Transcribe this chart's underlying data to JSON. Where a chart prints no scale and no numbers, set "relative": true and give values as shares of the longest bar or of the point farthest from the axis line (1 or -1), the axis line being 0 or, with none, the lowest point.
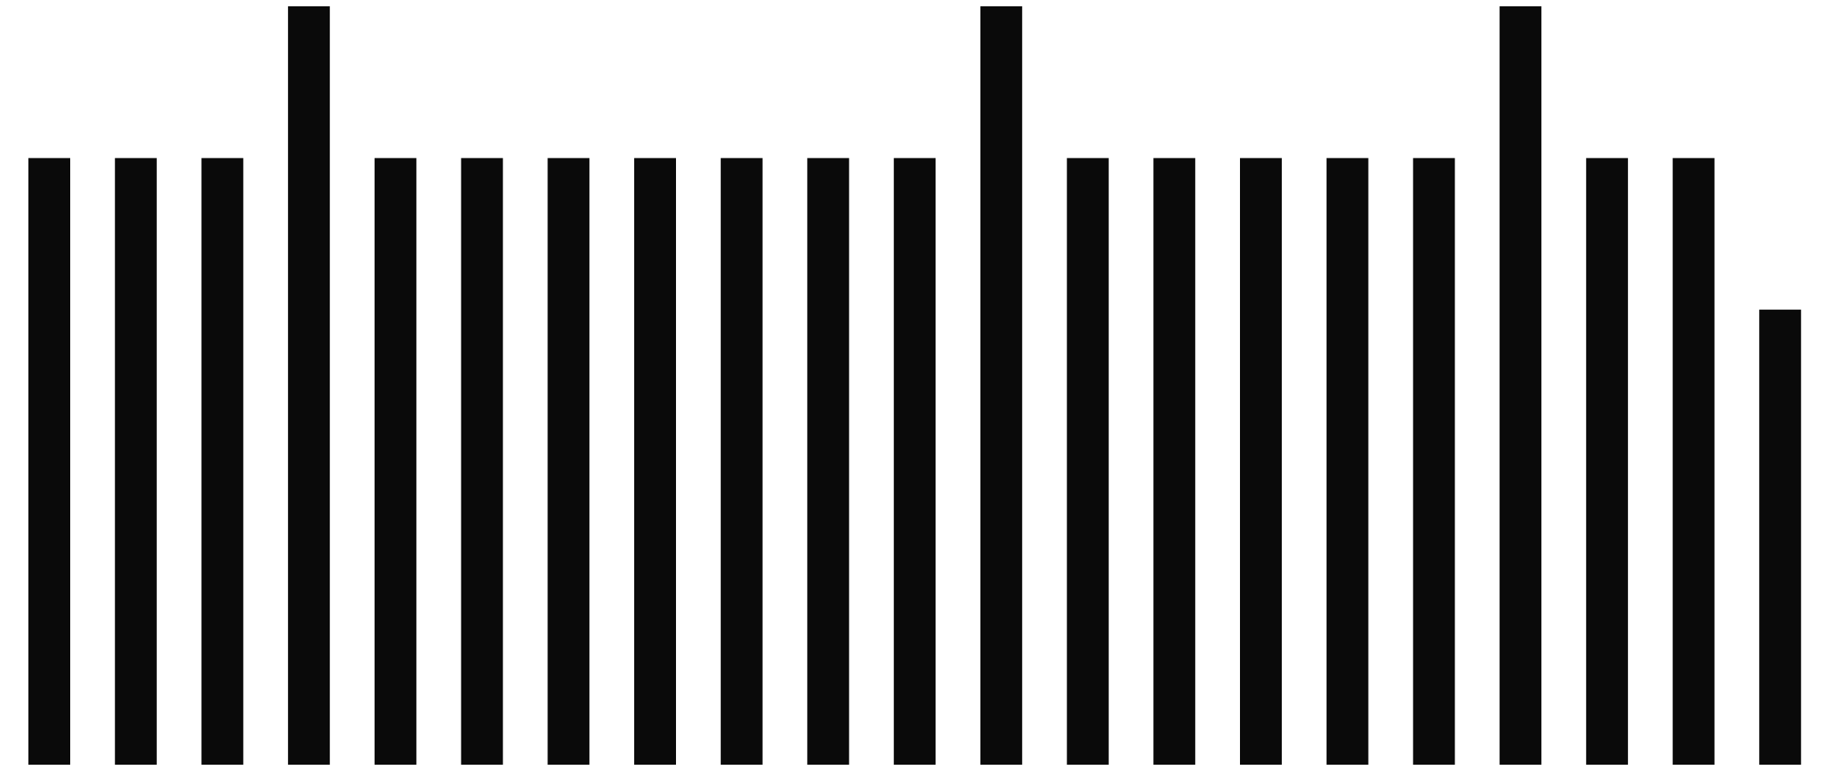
{
  "chart_data": {
    "type": "bar",
    "relative": true,
    "categories": [
      null,
      null,
      null,
      null,
      null,
      null,
      null,
      null,
      null,
      null,
      null,
      null,
      null,
      null,
      null,
      null,
      null,
      null,
      null,
      null,
      null
    ],
    "values": [
      0.8,
      0.8,
      0.8,
      1,
      0.8,
      0.8,
      0.8,
      0.8,
      0.8,
      0.8,
      0.8,
      1,
      0.8,
      0.8,
      0.8,
      0.8,
      0.8,
      1,
      0.8,
      0.8,
      0.6
    ],
    "color": "#0a0a0a"
  }
}
